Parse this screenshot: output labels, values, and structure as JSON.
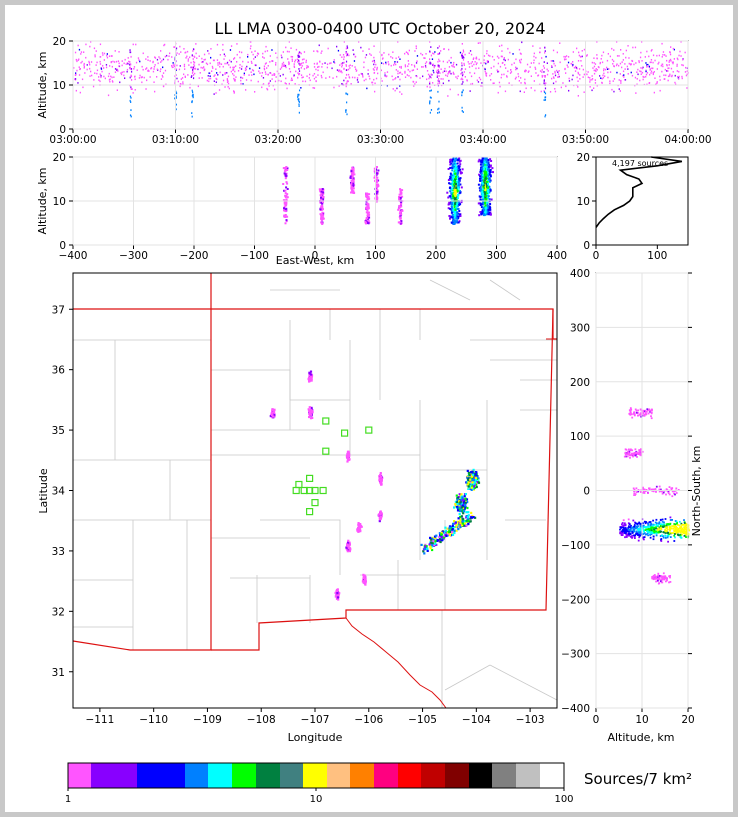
{
  "title": "LL LMA 0300-0400 UTC October 20, 2024",
  "time_panel": {
    "ylabel": "Altitude, km",
    "x_ticks": [
      "03:00:00",
      "03:10:00",
      "03:20:00",
      "03:30:00",
      "03:40:00",
      "03:50:00",
      "04:00:00"
    ],
    "y_ticks": [
      "0",
      "10",
      "20"
    ],
    "ylim": [
      0,
      20
    ]
  },
  "ew_panel": {
    "xlabel": "East-West, km",
    "ylabel": "Altitude, km",
    "x_ticks": [
      "−400",
      "−300",
      "−200",
      "−100",
      "0",
      "100",
      "200",
      "300",
      "400"
    ],
    "y_ticks": [
      "0",
      "10",
      "20"
    ],
    "xlim": [
      -400,
      400
    ],
    "ylim": [
      0,
      20
    ]
  },
  "hist_panel": {
    "annotation": "4,197 sources",
    "x_ticks": [
      "0",
      "100"
    ],
    "y_ticks": [
      "0",
      "10",
      "20"
    ],
    "xlim": [
      0,
      150
    ],
    "ylim": [
      0,
      20
    ]
  },
  "map_panel": {
    "xlabel": "Longitude",
    "ylabel": "Latitude",
    "x_ticks": [
      "−111",
      "−110",
      "−109",
      "−108",
      "−107",
      "−106",
      "−105",
      "−104",
      "−103"
    ],
    "y_ticks": [
      "31",
      "32",
      "33",
      "34",
      "35",
      "36",
      "37"
    ],
    "xlim": [
      -111.5,
      -102.5
    ],
    "ylim": [
      30.4,
      37.6
    ]
  },
  "ns_panel": {
    "xlabel": "Altitude, km",
    "ylabel": "North-South, km",
    "x_ticks": [
      "0",
      "10",
      "20"
    ],
    "y_ticks": [
      "−400",
      "−300",
      "−200",
      "−100",
      "0",
      "100",
      "200",
      "300",
      "400"
    ],
    "xlim": [
      0,
      20
    ],
    "ylim": [
      -400,
      400
    ]
  },
  "colorbar": {
    "label": "Sources/7 km²",
    "tick_labels": [
      "1",
      "10",
      "100"
    ],
    "colors": [
      "#ff55ff",
      "#8800ff",
      "#7f00ff",
      "#0000ff",
      "#0000ff",
      "#0080ff",
      "#00ffff",
      "#00ff00",
      "#008040",
      "#408080",
      "#ffff00",
      "#ffc080",
      "#ff8000",
      "#ff0080",
      "#ff0000",
      "#c00000",
      "#800000",
      "#000000",
      "#808080",
      "#c0c0c0",
      "#ffffff"
    ]
  },
  "chart_data": [
    {
      "type": "scatter",
      "panel": "altitude-vs-time",
      "xlabel": "",
      "ylabel": "Altitude, km",
      "xlim": [
        "03:00:00",
        "04:00:00"
      ],
      "ylim": [
        0,
        20
      ],
      "note_values": "density of sources across the full hour, mostly 5-20 km altitude"
    },
    {
      "type": "heatmap",
      "panel": "altitude-vs-east-west",
      "xlabel": "East-West, km",
      "ylabel": "Altitude, km",
      "clusters": [
        {
          "x": -50,
          "alt_range": [
            5,
            18
          ]
        },
        {
          "x": 10,
          "alt_range": [
            5,
            13
          ]
        },
        {
          "x": 60,
          "alt_range": [
            12,
            18
          ]
        },
        {
          "x": 85,
          "alt_range": [
            5,
            12
          ]
        },
        {
          "x": 100,
          "alt_range": [
            10,
            18
          ]
        },
        {
          "x": 140,
          "alt_range": [
            5,
            13
          ]
        },
        {
          "x": 230,
          "alt_range": [
            5,
            20
          ]
        },
        {
          "x": 280,
          "alt_range": [
            7,
            20
          ]
        }
      ]
    },
    {
      "type": "line",
      "panel": "source-count-vs-altitude",
      "annotation": "4,197 sources",
      "points": [
        [
          0,
          4
        ],
        [
          5,
          5
        ],
        [
          12,
          6
        ],
        [
          20,
          7
        ],
        [
          30,
          8
        ],
        [
          45,
          9
        ],
        [
          55,
          10
        ],
        [
          60,
          11
        ],
        [
          60,
          12
        ],
        [
          60,
          13
        ],
        [
          75,
          14
        ],
        [
          70,
          15
        ],
        [
          50,
          16
        ],
        [
          40,
          17
        ],
        [
          100,
          18
        ],
        [
          140,
          19
        ],
        [
          90,
          20
        ]
      ]
    },
    {
      "type": "heatmap",
      "panel": "latitude-vs-longitude",
      "xlabel": "Longitude",
      "ylabel": "Latitude",
      "clusters": [
        {
          "lon": -107.8,
          "lat": 35.3
        },
        {
          "lon": -107.1,
          "lat": 35.3
        },
        {
          "lon": -107.1,
          "lat": 35.9
        },
        {
          "lon": -106.4,
          "lat": 34.6
        },
        {
          "lon": -105.8,
          "lat": 34.2
        },
        {
          "lon": -105.8,
          "lat": 33.6
        },
        {
          "lon": -106.2,
          "lat": 33.4
        },
        {
          "lon": -106.4,
          "lat": 33.1
        },
        {
          "lon": -106.1,
          "lat": 32.55
        },
        {
          "lon": -106.6,
          "lat": 32.3
        },
        {
          "lon": -104.8,
          "lat": 33.3
        },
        {
          "lon": -104.3,
          "lat": 33.8
        },
        {
          "lon": -104.1,
          "lat": 34.2
        }
      ],
      "stations": [
        [
          -107.3,
          34.1
        ],
        [
          -107.2,
          34.0
        ],
        [
          -107.1,
          34.0
        ],
        [
          -107.0,
          34.0
        ],
        [
          -107.1,
          34.2
        ],
        [
          -107.0,
          33.8
        ],
        [
          -107.1,
          33.65
        ],
        [
          -106.85,
          34.0
        ],
        [
          -106.8,
          34.65
        ],
        [
          -106.8,
          35.15
        ],
        [
          -106.45,
          34.95
        ],
        [
          -106.0,
          35.0
        ],
        [
          -107.35,
          34.0
        ]
      ]
    },
    {
      "type": "heatmap",
      "panel": "north-south-vs-altitude",
      "xlabel": "Altitude, km",
      "ylabel": "North-South, km",
      "clusters": [
        {
          "alt_range": [
            7,
            12
          ],
          "y": 145
        },
        {
          "alt_range": [
            6,
            10
          ],
          "y": 70
        },
        {
          "alt_range": [
            8,
            18
          ],
          "y": 0
        },
        {
          "alt_range": [
            5,
            20
          ],
          "y": -70
        },
        {
          "alt_range": [
            12,
            16
          ],
          "y": -160
        }
      ]
    }
  ]
}
